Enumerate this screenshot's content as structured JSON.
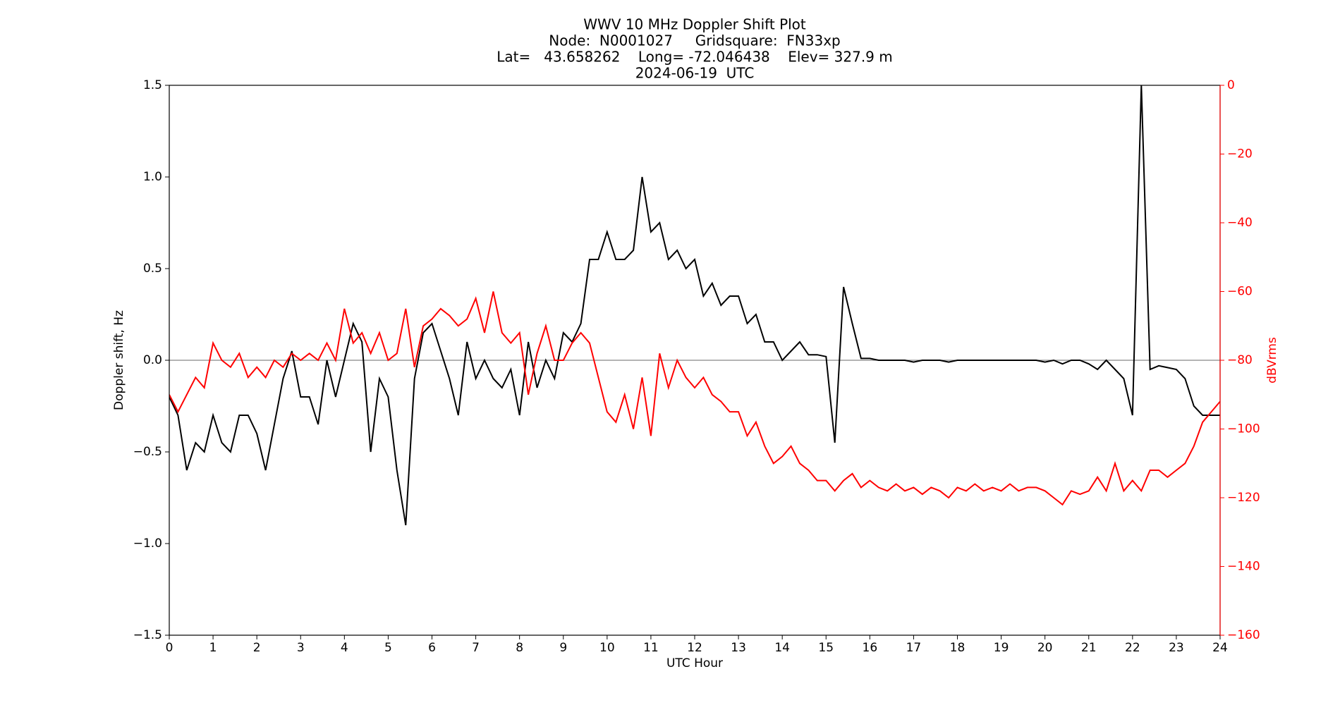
{
  "chart_data": {
    "type": "line",
    "title_lines": [
      "WWV 10 MHz Doppler Shift Plot",
      "Node:  N0001027     Gridsquare:  FN33xp",
      "Lat=   43.658262    Long= -72.046438    Elev= 327.9 m",
      "2024-06-19  UTC"
    ],
    "x_label": "UTC Hour",
    "y_label": "Doppler shift, Hz",
    "y2_label": "dBVrms",
    "x": [
      0,
      0.2,
      0.4,
      0.6,
      0.8,
      1,
      1.2,
      1.4,
      1.6,
      1.8,
      2,
      2.2,
      2.4,
      2.6,
      2.8,
      3,
      3.2,
      3.4,
      3.6,
      3.8,
      4,
      4.2,
      4.4,
      4.6,
      4.8,
      5,
      5.2,
      5.4,
      5.6,
      5.8,
      6,
      6.2,
      6.4,
      6.6,
      6.8,
      7,
      7.2,
      7.4,
      7.6,
      7.8,
      8,
      8.2,
      8.4,
      8.6,
      8.8,
      9,
      9.2,
      9.4,
      9.6,
      9.8,
      10,
      10.2,
      10.4,
      10.6,
      10.8,
      11,
      11.2,
      11.4,
      11.6,
      11.8,
      12,
      12.2,
      12.4,
      12.6,
      12.8,
      13,
      13.2,
      13.4,
      13.6,
      13.8,
      14,
      14.2,
      14.4,
      14.6,
      14.8,
      15,
      15.2,
      15.4,
      15.6,
      15.8,
      16,
      16.2,
      16.4,
      16.6,
      16.8,
      17,
      17.2,
      17.4,
      17.6,
      17.8,
      18,
      18.2,
      18.4,
      18.6,
      18.8,
      19,
      19.2,
      19.4,
      19.6,
      19.8,
      20,
      20.2,
      20.4,
      20.6,
      20.8,
      21,
      21.2,
      21.4,
      21.6,
      21.8,
      22,
      22.2,
      22.4,
      22.6,
      22.8,
      23,
      23.2,
      23.4,
      23.6,
      23.8,
      24
    ],
    "series": [
      {
        "name": "Doppler shift",
        "color": "#000000",
        "axis": "y",
        "values": [
          -0.2,
          -0.3,
          -0.6,
          -0.45,
          -0.5,
          -0.3,
          -0.45,
          -0.5,
          -0.3,
          -0.3,
          -0.4,
          -0.6,
          -0.35,
          -0.1,
          0.05,
          -0.2,
          -0.2,
          -0.35,
          0.0,
          -0.2,
          0.0,
          0.2,
          0.1,
          -0.5,
          -0.1,
          -0.2,
          -0.6,
          -0.9,
          -0.1,
          0.15,
          0.2,
          0.05,
          -0.1,
          -0.3,
          0.1,
          -0.1,
          0.0,
          -0.1,
          -0.15,
          -0.05,
          -0.3,
          0.1,
          -0.15,
          0.0,
          -0.1,
          0.15,
          0.1,
          0.2,
          0.55,
          0.55,
          0.7,
          0.55,
          0.55,
          0.6,
          1.0,
          0.7,
          0.75,
          0.55,
          0.6,
          0.5,
          0.55,
          0.35,
          0.42,
          0.3,
          0.35,
          0.35,
          0.2,
          0.25,
          0.1,
          0.1,
          0.0,
          0.05,
          0.1,
          0.03,
          0.03,
          0.02,
          -0.45,
          0.4,
          0.2,
          0.01,
          0.01,
          0,
          0,
          0,
          0,
          -0.01,
          0,
          0,
          0,
          -0.01,
          0,
          0,
          0,
          0,
          0,
          0,
          0,
          0,
          0,
          0,
          -0.01,
          0,
          -0.02,
          0,
          0,
          -0.02,
          -0.05,
          0.0,
          -0.05,
          -0.1,
          -0.3,
          1.5,
          -0.05,
          -0.03,
          -0.04,
          -0.05,
          -0.1,
          -0.25,
          -0.3,
          -0.3,
          -0.3
        ]
      },
      {
        "name": "dBVrms",
        "color": "#ff0000",
        "axis": "y2",
        "values": [
          -90,
          -95,
          -90,
          -85,
          -88,
          -75,
          -80,
          -82,
          -78,
          -85,
          -82,
          -85,
          -80,
          -82,
          -78,
          -80,
          -78,
          -80,
          -75,
          -80,
          -65,
          -75,
          -72,
          -78,
          -72,
          -80,
          -78,
          -65,
          -82,
          -70,
          -68,
          -65,
          -67,
          -70,
          -68,
          -62,
          -72,
          -60,
          -72,
          -75,
          -72,
          -90,
          -78,
          -70,
          -80,
          -80,
          -75,
          -72,
          -75,
          -85,
          -95,
          -98,
          -90,
          -100,
          -85,
          -102,
          -78,
          -88,
          -80,
          -85,
          -88,
          -85,
          -90,
          -92,
          -95,
          -95,
          -102,
          -98,
          -105,
          -110,
          -108,
          -105,
          -110,
          -112,
          -115,
          -115,
          -118,
          -115,
          -113,
          -117,
          -115,
          -117,
          -118,
          -116,
          -118,
          -117,
          -119,
          -117,
          -118,
          -120,
          -117,
          -118,
          -116,
          -118,
          -117,
          -118,
          -116,
          -118,
          -117,
          -117,
          -118,
          -120,
          -122,
          -118,
          -119,
          -118,
          -114,
          -118,
          -110,
          -118,
          -115,
          -118,
          -112,
          -112,
          -114,
          -112,
          -110,
          -105,
          -98,
          -95,
          -92
        ]
      }
    ],
    "hline": 0,
    "xlim": [
      0,
      24
    ],
    "xticks": [
      0,
      1,
      2,
      3,
      4,
      5,
      6,
      7,
      8,
      9,
      10,
      11,
      12,
      13,
      14,
      15,
      16,
      17,
      18,
      19,
      20,
      21,
      22,
      23,
      24
    ],
    "ylim": [
      -1.5,
      1.5
    ],
    "yticks": [
      {
        "value": -1.5,
        "label": "−1.5"
      },
      {
        "value": -1.0,
        "label": "−1.0"
      },
      {
        "value": -0.5,
        "label": "−0.5"
      },
      {
        "value": 0.0,
        "label": "0.0"
      },
      0.5,
      {
        "value": 1.0,
        "label": "1.0"
      },
      1.5
    ],
    "y2lim": [
      -160,
      0
    ],
    "y2ticks": [
      {
        "value": -160,
        "label": "−160"
      },
      {
        "value": -140,
        "label": "−140"
      },
      {
        "value": -120,
        "label": "−120"
      },
      {
        "value": -100,
        "label": "−100"
      },
      {
        "value": -80,
        "label": "−80"
      },
      {
        "value": -60,
        "label": "−60"
      },
      {
        "value": -40,
        "label": "−40"
      },
      {
        "value": -20,
        "label": "−20"
      },
      0
    ],
    "y2_color": "#ff0000"
  }
}
